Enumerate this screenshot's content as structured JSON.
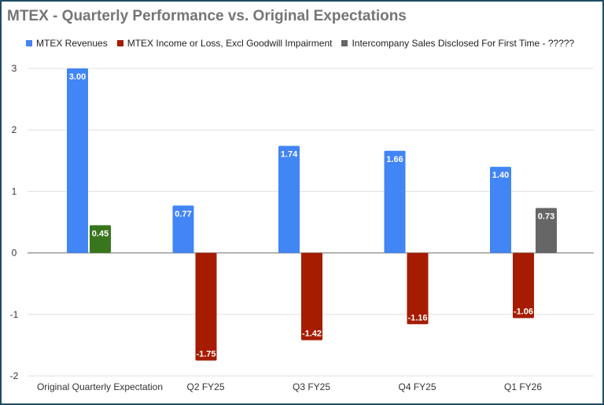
{
  "chart_data": {
    "type": "bar",
    "title": "MTEX - Quarterly Performance vs. Original Expectations",
    "categories": [
      "Original Quarterly Expectation",
      "Q2 FY25",
      "Q3 FY25",
      "Q4 FY25",
      "Q1 FY26"
    ],
    "series": [
      {
        "name": "MTEX Revenues",
        "color": "#4285f4",
        "values": [
          3.0,
          0.77,
          1.74,
          1.66,
          1.4
        ],
        "labels": [
          "3.00",
          "0.77",
          "1.74",
          "1.66",
          "1.40"
        ]
      },
      {
        "name": "MTEX Income or Loss, Excl Goodwill Impairment",
        "color": "#a61c00",
        "point_colors": [
          "#38761d",
          null,
          null,
          null,
          null
        ],
        "values": [
          0.45,
          -1.75,
          -1.42,
          -1.16,
          -1.06
        ],
        "labels": [
          "0.45",
          "-1.75",
          "-1.42",
          "-1.16",
          "-1.06"
        ]
      },
      {
        "name": "Intercompany Sales Disclosed For First Time - ?????",
        "color": "#666666",
        "values": [
          null,
          null,
          null,
          null,
          0.73
        ],
        "labels": [
          null,
          null,
          null,
          null,
          "0.73"
        ]
      }
    ],
    "ylim": [
      -2,
      3
    ],
    "yticks": [
      "3",
      "2",
      "1",
      "0",
      "-1",
      "-2"
    ],
    "ytick_values": [
      3,
      2,
      1,
      0,
      -1,
      -2
    ],
    "grid": true,
    "legend": "top",
    "xlabel": "",
    "ylabel": ""
  }
}
